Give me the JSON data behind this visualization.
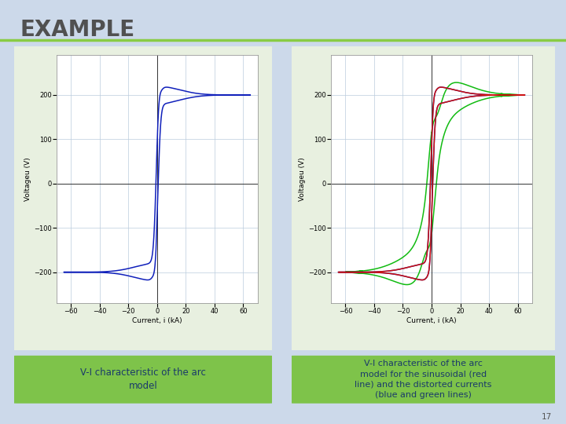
{
  "title": "EXAMPLE",
  "title_color": "#505050",
  "title_fontsize": 20,
  "background_color": "#ccd9ea",
  "panel_bg": "#e8f0e0",
  "chart_bg": "#ffffff",
  "label1": "V-I characteristic of the arc\nmodel",
  "label2": "V-I characteristic of the arc\nmodel for the sinusoidal (red\nline) and the distorted currents\n(blue and green lines)",
  "label_bg": "#7ec34a",
  "label_text_color": "#1a3a6a",
  "xlabel": "Current, i (kA)",
  "ylabel": "Voltageu (V)",
  "xlim": [
    -70,
    70
  ],
  "ylim": [
    -270,
    290
  ],
  "xticks": [
    -60,
    -40,
    -20,
    0,
    20,
    40,
    60
  ],
  "yticks": [
    -200,
    -100,
    0,
    100,
    200
  ],
  "blue_color": "#1020bb",
  "red_color": "#cc1111",
  "green_color": "#11bb11",
  "page_number": "17"
}
